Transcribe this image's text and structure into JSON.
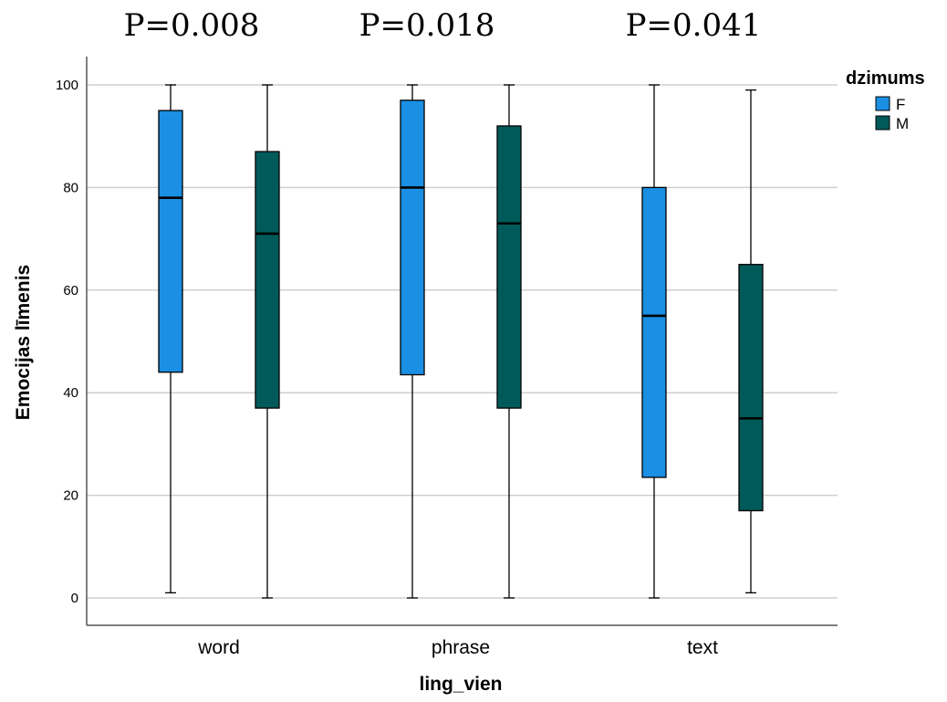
{
  "annotations": [
    "P=0.008",
    "P=0.018",
    "P=0.041"
  ],
  "chart_data": {
    "type": "boxplot",
    "xlabel": "ling_vien",
    "ylabel": "Emocijas līmenis",
    "categories": [
      "word",
      "phrase",
      "text"
    ],
    "ylim": [
      -5,
      105
    ],
    "yticks": [
      0,
      20,
      40,
      60,
      80,
      100
    ],
    "grid": true,
    "legend": {
      "title": "dzimums",
      "position": "top-right"
    },
    "series": [
      {
        "name": "F",
        "color": "#1a8fe3",
        "boxes": [
          {
            "min": 1,
            "q1": 44,
            "median": 78,
            "q3": 95,
            "max": 100
          },
          {
            "min": 0,
            "q1": 43.5,
            "median": 80,
            "q3": 97,
            "max": 100
          },
          {
            "min": 0,
            "q1": 23.5,
            "median": 55,
            "q3": 80,
            "max": 100
          }
        ]
      },
      {
        "name": "M",
        "color": "#005a5a",
        "boxes": [
          {
            "min": 0,
            "q1": 37,
            "median": 71,
            "q3": 87,
            "max": 100
          },
          {
            "min": 0,
            "q1": 37,
            "median": 73,
            "q3": 92,
            "max": 100
          },
          {
            "min": 1,
            "q1": 17,
            "median": 35,
            "q3": 65,
            "max": 99
          }
        ]
      }
    ]
  }
}
